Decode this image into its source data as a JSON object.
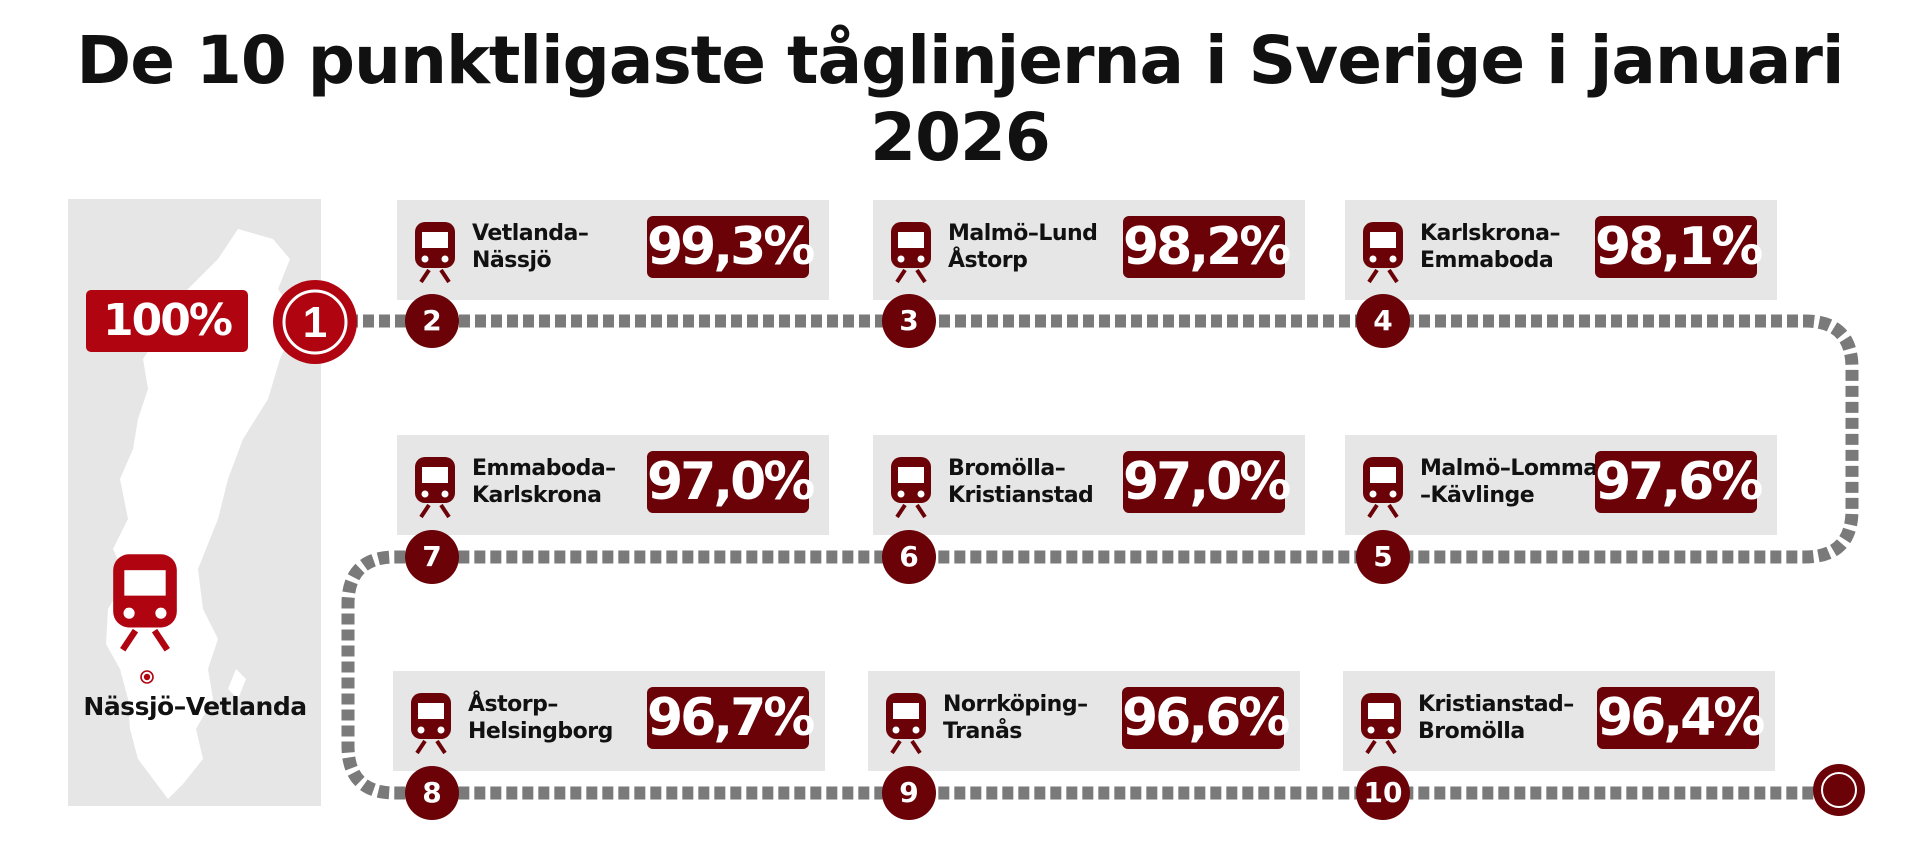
{
  "title": "De 10 punktligaste tåglinjerna i Sverige i januari 2026",
  "winner": {
    "rank": "1",
    "percent": "100%",
    "line": "Nässjö–Vetlanda"
  },
  "lines": [
    {
      "rank": "2",
      "name": "Vetlanda–\nNässjö",
      "percent": "99,3%"
    },
    {
      "rank": "3",
      "name": "Malmö–Lund\nÅstorp",
      "percent": "98,2%"
    },
    {
      "rank": "4",
      "name": "Karlskrona–\nEmmaboda",
      "percent": "98,1%"
    },
    {
      "rank": "5",
      "name": "Malmö–Lomma\n–Kävlinge",
      "percent": "97,6%"
    },
    {
      "rank": "6",
      "name": "Bromölla–\nKristianstad",
      "percent": "97,0%"
    },
    {
      "rank": "7",
      "name": "Emmaboda–\nKarlskrona",
      "percent": "97,0%"
    },
    {
      "rank": "8",
      "name": "Åstorp–\nHelsingborg",
      "percent": "96,7%"
    },
    {
      "rank": "9",
      "name": "Norrköping–\nTranås",
      "percent": "96,6%"
    },
    {
      "rank": "10",
      "name": "Kristianstad–\nBromölla",
      "percent": "96,4%"
    }
  ],
  "colors": {
    "dark_red": "#6b0208",
    "bright_red": "#b00510",
    "panel_gray": "#e6e6e6",
    "track_gray": "#7a7a7a"
  },
  "icons": {
    "train": "train-front-icon",
    "location": "location-dot-icon",
    "map": "sweden-map-icon"
  }
}
